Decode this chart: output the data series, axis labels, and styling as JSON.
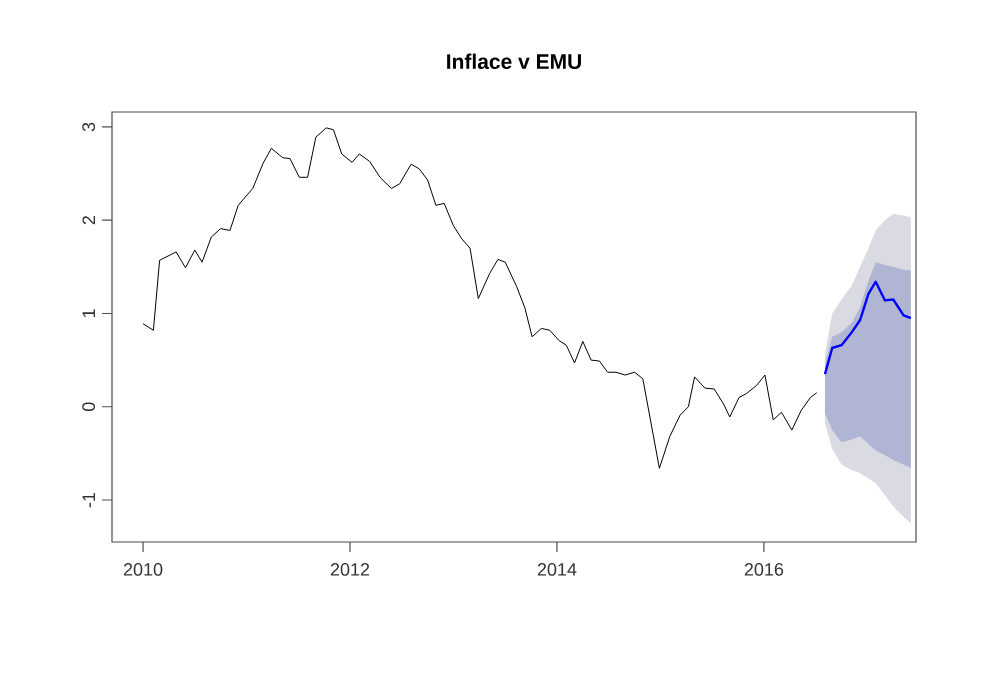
{
  "chart_data": {
    "type": "line",
    "title": "Inflace v EMU",
    "xlim": [
      2009.7,
      2017.47
    ],
    "ylim": [
      -1.45,
      3.16
    ],
    "xticks": [
      2010,
      2012,
      2014,
      2016
    ],
    "yticks": [
      -1,
      0,
      1,
      2,
      3
    ],
    "grid": false,
    "marker": "none",
    "line_style": "solid",
    "series": [
      {
        "color": "#000000",
        "x": [
          2010.0,
          2010.1,
          2010.16,
          2010.32,
          2010.41,
          2010.5,
          2010.57,
          2010.66,
          2010.75,
          2010.84,
          2010.92,
          2011.06,
          2011.16,
          2011.24,
          2011.35,
          2011.42,
          2011.51,
          2011.59,
          2011.67,
          2011.77,
          2011.84,
          2011.92,
          2012.02,
          2012.09,
          2012.19,
          2012.29,
          2012.4,
          2012.48,
          2012.59,
          2012.67,
          2012.75,
          2012.83,
          2012.91,
          2013.0,
          2013.08,
          2013.16,
          2013.24,
          2013.35,
          2013.43,
          2013.5,
          2013.61,
          2013.69,
          2013.76,
          2013.85,
          2013.93,
          2014.02,
          2014.09,
          2014.17,
          2014.25,
          2014.33,
          2014.41,
          2014.49,
          2014.57,
          2014.66,
          2014.75,
          2014.83,
          2014.99,
          2015.09,
          2015.19,
          2015.27,
          2015.33,
          2015.43,
          2015.52,
          2015.61,
          2015.67,
          2015.76,
          2015.83,
          2015.93,
          2016.01,
          2016.09,
          2016.17,
          2016.27,
          2016.36,
          2016.45,
          2016.51
        ],
        "values": [
          0.89,
          0.82,
          1.57,
          1.66,
          1.49,
          1.68,
          1.55,
          1.82,
          1.91,
          1.89,
          2.16,
          2.34,
          2.61,
          2.77,
          2.67,
          2.66,
          2.46,
          2.46,
          2.89,
          2.99,
          2.97,
          2.71,
          2.62,
          2.71,
          2.63,
          2.46,
          2.34,
          2.39,
          2.6,
          2.55,
          2.43,
          2.16,
          2.18,
          1.94,
          1.8,
          1.7,
          1.16,
          1.43,
          1.58,
          1.55,
          1.29,
          1.06,
          0.75,
          0.84,
          0.82,
          0.71,
          0.66,
          0.47,
          0.7,
          0.5,
          0.49,
          0.37,
          0.37,
          0.34,
          0.37,
          0.3,
          -0.66,
          -0.32,
          -0.09,
          0.0,
          0.32,
          0.2,
          0.19,
          0.03,
          -0.11,
          0.1,
          0.14,
          0.23,
          0.34,
          -0.14,
          -0.06,
          -0.25,
          -0.04,
          0.1,
          0.15
        ]
      },
      {
        "color": "#dadae2",
        "x": [
          2016.59,
          2016.66,
          2016.75,
          2016.85,
          2016.93,
          2017.01,
          2017.08,
          2017.17,
          2017.25,
          2017.35,
          2017.42
        ],
        "values": [
          null,
          null,
          null,
          null,
          null,
          null,
          null,
          null,
          null,
          null,
          null
        ],
        "lower": [
          -0.18,
          -0.45,
          -0.62,
          -0.68,
          -0.71,
          -0.77,
          -0.82,
          -0.95,
          -1.07,
          -1.18,
          -1.25
        ],
        "upper": [
          0.57,
          1.0,
          1.15,
          1.3,
          1.5,
          1.7,
          1.89,
          2.0,
          2.07,
          2.05,
          2.03
        ]
      },
      {
        "color": "#b0b5d3",
        "x": [
          2016.59,
          2016.66,
          2016.75,
          2016.85,
          2016.93,
          2017.01,
          2017.08,
          2017.17,
          2017.25,
          2017.35,
          2017.42
        ],
        "values": [
          null,
          null,
          null,
          null,
          null,
          null,
          null,
          null,
          null,
          null,
          null
        ],
        "lower": [
          -0.07,
          -0.25,
          -0.38,
          -0.35,
          -0.32,
          -0.4,
          -0.47,
          -0.52,
          -0.57,
          -0.62,
          -0.66
        ],
        "upper": [
          0.46,
          0.75,
          0.8,
          0.9,
          1.07,
          1.35,
          1.55,
          1.52,
          1.5,
          1.47,
          1.46
        ]
      },
      {
        "color": "#0000ff",
        "x": [
          2016.59,
          2016.66,
          2016.75,
          2016.85,
          2016.93,
          2017.01,
          2017.08,
          2017.17,
          2017.25,
          2017.35,
          2017.42
        ],
        "values": [
          0.35,
          0.63,
          0.66,
          0.8,
          0.93,
          1.21,
          1.34,
          1.14,
          1.15,
          0.98,
          0.95
        ]
      }
    ]
  }
}
